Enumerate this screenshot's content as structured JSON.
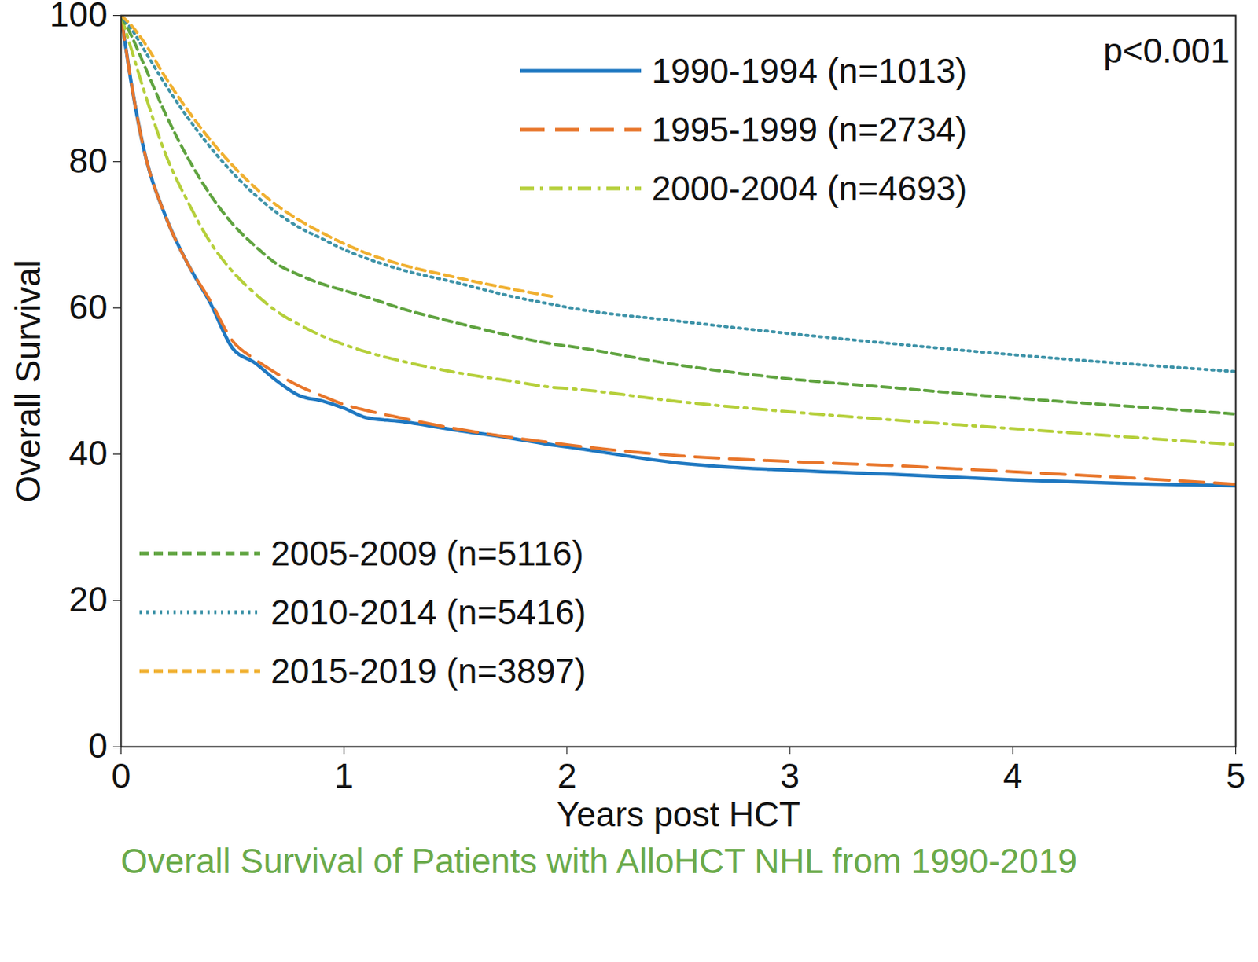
{
  "chart_data": {
    "type": "line",
    "title": "Overall Survival of Patients with AlloHCT NHL from 1990-2019",
    "x_label": "Years post HCT",
    "y_label": "Overall Survival",
    "annotation": "p<0.001",
    "x": [
      0,
      0.05,
      0.1,
      0.2,
      0.3,
      0.4,
      0.5,
      0.6,
      0.7,
      0.8,
      0.9,
      1,
      1.1,
      1.25,
      1.5,
      1.75,
      1.95,
      2,
      2.5,
      3,
      3.5,
      4,
      4.5,
      5
    ],
    "xlim": [
      0,
      5
    ],
    "xticks": [
      0,
      1,
      2,
      3,
      4,
      5
    ],
    "ylim": [
      0,
      100
    ],
    "yticks": [
      0,
      20,
      40,
      60,
      80,
      100
    ],
    "grid": false,
    "series": [
      {
        "name": "1990-1994 (n=1013)",
        "color": "#1f78c1",
        "line_style": "solid",
        "values": [
          100,
          90,
          82,
          72.5,
          66,
          60.7,
          54.5,
          52.5,
          50,
          48,
          47.3,
          46.3,
          45,
          44.5,
          43.3,
          42.2,
          41.2,
          41,
          38.8,
          37.8,
          37.2,
          36.5,
          36,
          35.7
        ]
      },
      {
        "name": "1995-1999 (n=2734)",
        "color": "#e8762b",
        "line_style": "longdash",
        "values": [
          100,
          90,
          82,
          72.5,
          66,
          61,
          55.5,
          53,
          51,
          49.3,
          48,
          46.8,
          46,
          45,
          43.5,
          42.3,
          41.5,
          41.3,
          39.8,
          39,
          38.4,
          37.6,
          36.8,
          35.9
        ]
      },
      {
        "name": "2000-2004 (n=4693)",
        "color": "#b5cf3a",
        "line_style": "dashdot",
        "values": [
          100,
          95,
          90,
          81,
          74.5,
          69,
          65,
          62,
          59.5,
          57.7,
          56.2,
          55,
          54,
          52.8,
          51.2,
          50,
          49.1,
          49,
          47.2,
          45.8,
          44.6,
          43.5,
          42.4,
          41.3
        ]
      },
      {
        "name": "2005-2009 (n=5116)",
        "color": "#5fa33f",
        "line_style": "dashed",
        "values": [
          100,
          97,
          93.5,
          86.5,
          80.5,
          75.5,
          71.5,
          68.5,
          66,
          64.5,
          63.3,
          62.4,
          61.5,
          60,
          58,
          56.2,
          55,
          54.8,
          52.2,
          50.3,
          49,
          47.7,
          46.6,
          45.5
        ]
      },
      {
        "name": "2010-2014 (n=5416)",
        "color": "#3e93a8",
        "line_style": "dotted",
        "values": [
          100,
          98,
          95.5,
          90.5,
          86,
          82,
          78.5,
          75.5,
          73,
          71,
          69.5,
          68,
          66.8,
          65.3,
          63.5,
          61.6,
          60.4,
          60.1,
          58.2,
          56.5,
          55,
          53.6,
          52.4,
          51.3
        ]
      },
      {
        "name": "2015-2019 (n=3897)",
        "color": "#f0b030",
        "line_style": "dashed",
        "values": [
          100,
          98.5,
          96.5,
          91.5,
          87,
          83,
          79.5,
          76.5,
          74,
          72,
          70.3,
          68.8,
          67.5,
          66,
          64.2,
          62.6,
          61.5,
          null,
          null,
          null,
          null,
          null,
          null,
          null
        ]
      }
    ]
  }
}
